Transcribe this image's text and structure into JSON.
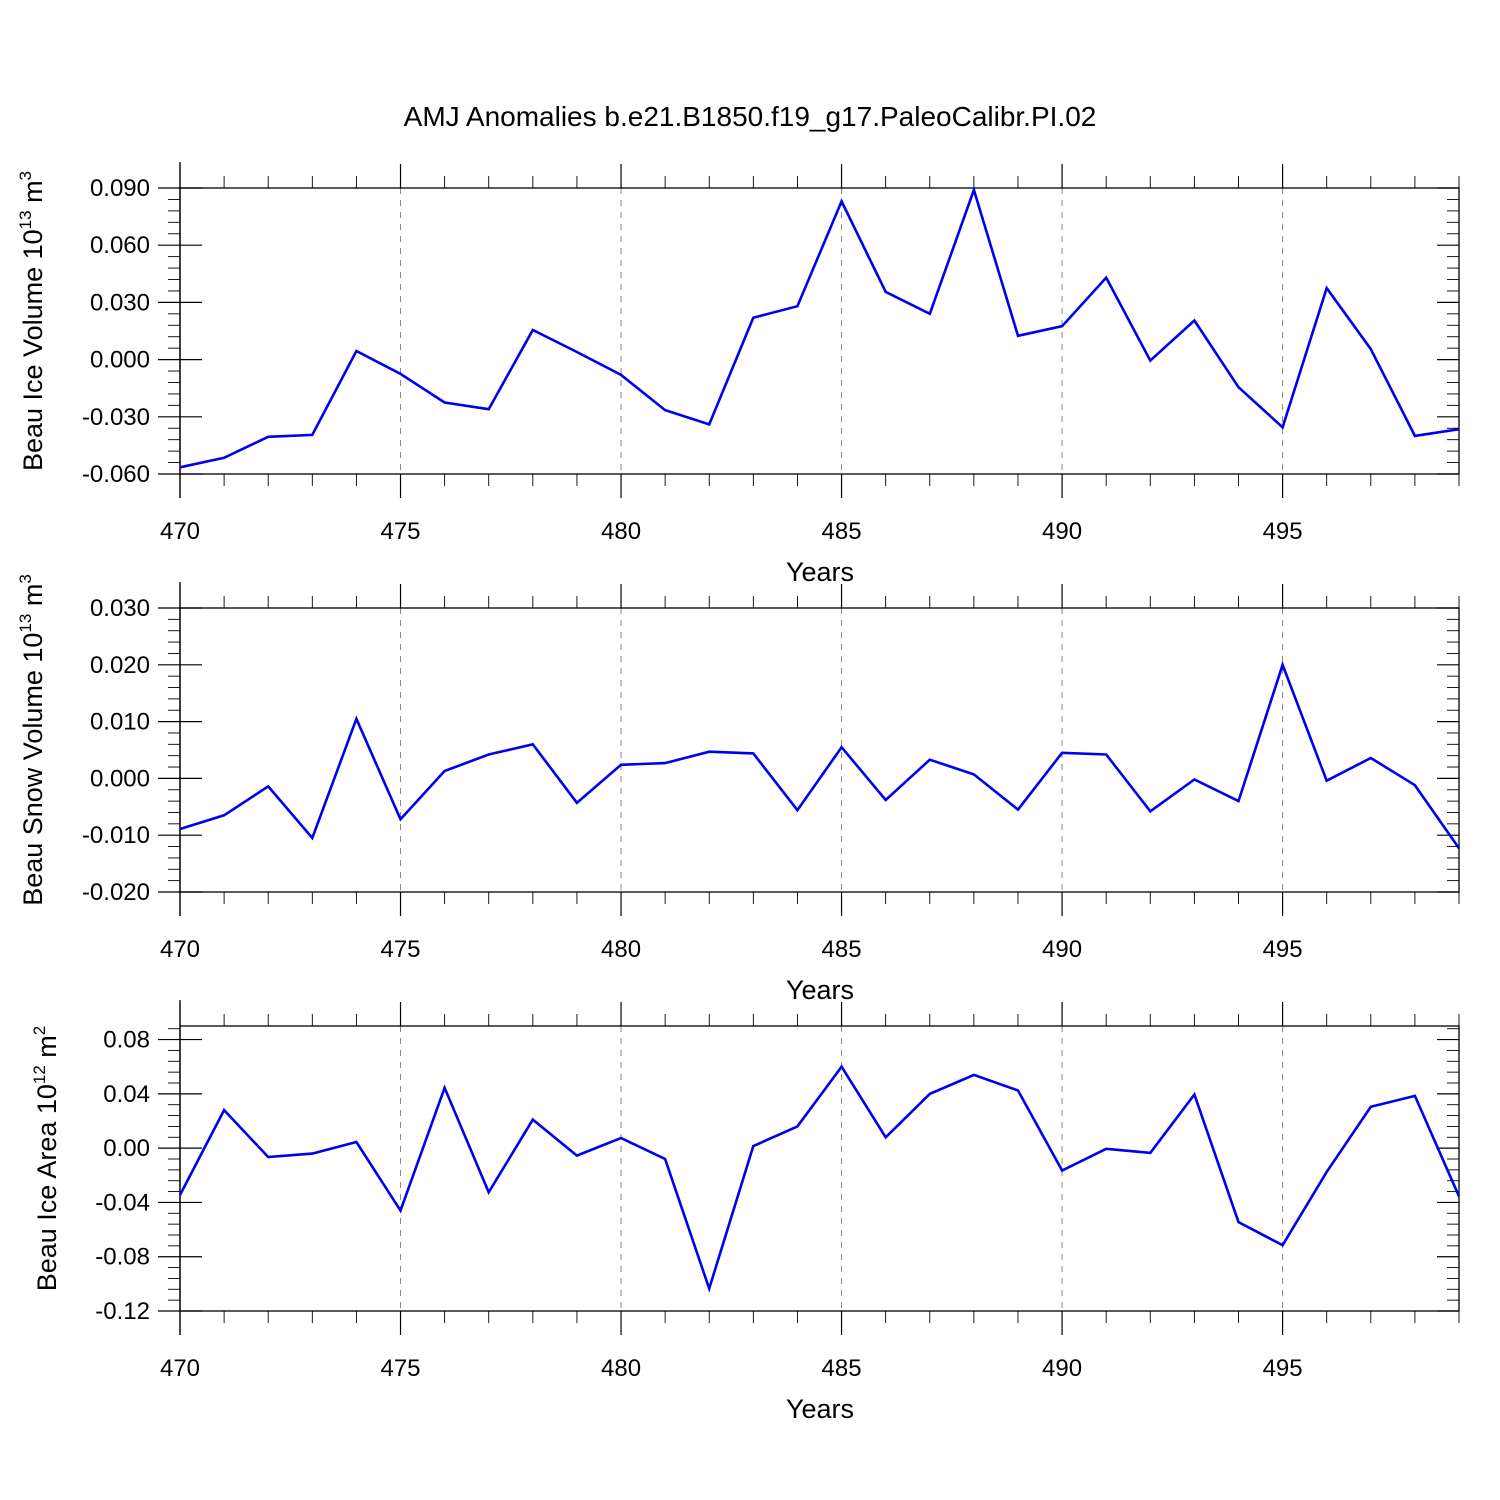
{
  "title": "AMJ Anomalies b.e21.B1850.f19_g17.PaleoCalibr.PI.02",
  "colors": {
    "line": "#0000ee",
    "axis": "#000000",
    "grid": "#888888"
  },
  "chart_data": [
    {
      "type": "line",
      "ylabel": {
        "text": "Beau Ice Volume 10",
        "sup": "13",
        "unit": " m",
        "unit_sup": "3"
      },
      "xlabel": "Years",
      "xlim": [
        470,
        499
      ],
      "ylim": [
        -0.06,
        0.09
      ],
      "xticks": [
        470,
        475,
        480,
        485,
        490,
        495
      ],
      "xtick_labels": [
        "470",
        "475",
        "480",
        "485",
        "490",
        "495"
      ],
      "yticks": [
        -0.06,
        -0.03,
        0,
        0.03,
        0.06,
        0.09
      ],
      "ytick_labels": [
        "-0.060",
        "-0.030",
        "0.000",
        "0.030",
        "0.060",
        "0.090"
      ],
      "grid": "vertical-dashed-at-major-x",
      "x": [
        470,
        471,
        472,
        473,
        474,
        475,
        476,
        477,
        478,
        479,
        480,
        481,
        482,
        483,
        484,
        485,
        486,
        487,
        488,
        489,
        490,
        491,
        492,
        493,
        494,
        495,
        496,
        497,
        498,
        499
      ],
      "values": [
        -0.0565,
        -0.0515,
        -0.0405,
        -0.0395,
        0.0045,
        -0.0075,
        -0.0225,
        -0.026,
        0.0155,
        0.004,
        -0.008,
        -0.0265,
        -0.034,
        0.022,
        0.028,
        0.083,
        0.0355,
        0.024,
        0.089,
        0.0125,
        0.0175,
        0.043,
        -0.0005,
        0.0205,
        -0.0145,
        -0.0355,
        0.0375,
        0.0055,
        -0.04,
        -0.0365
      ]
    },
    {
      "type": "line",
      "ylabel": {
        "text": "Beau Snow Volume 10",
        "sup": "13",
        "unit": " m",
        "unit_sup": "3"
      },
      "xlabel": "Years",
      "xlim": [
        470,
        499
      ],
      "ylim": [
        -0.02,
        0.03
      ],
      "xticks": [
        470,
        475,
        480,
        485,
        490,
        495
      ],
      "xtick_labels": [
        "470",
        "475",
        "480",
        "485",
        "490",
        "495"
      ],
      "yticks": [
        -0.02,
        -0.01,
        0,
        0.01,
        0.02,
        0.03
      ],
      "ytick_labels": [
        "-0.020",
        "-0.010",
        "0.000",
        "0.010",
        "0.020",
        "0.030"
      ],
      "grid": "vertical-dashed-at-major-x",
      "x": [
        470,
        471,
        472,
        473,
        474,
        475,
        476,
        477,
        478,
        479,
        480,
        481,
        482,
        483,
        484,
        485,
        486,
        487,
        488,
        489,
        490,
        491,
        492,
        493,
        494,
        495,
        496,
        497,
        498,
        499
      ],
      "values": [
        -0.0089,
        -0.0065,
        -0.0014,
        -0.0105,
        0.0105,
        -0.0072,
        0.0013,
        0.0042,
        0.006,
        -0.0043,
        0.0024,
        0.0027,
        0.0047,
        0.0044,
        -0.0056,
        0.0055,
        -0.0038,
        0.0033,
        0.0007,
        -0.0055,
        0.0045,
        0.0042,
        -0.0058,
        -0.0002,
        -0.004,
        0.02,
        -0.0004,
        0.0036,
        -0.0012,
        -0.0123
      ]
    },
    {
      "type": "line",
      "ylabel": {
        "text": "Beau Ice Area 10",
        "sup": "12",
        "unit": " m",
        "unit_sup": "2"
      },
      "xlabel": "Years",
      "xlim": [
        470,
        499
      ],
      "ylim": [
        -0.12,
        0.09
      ],
      "xticks": [
        470,
        475,
        480,
        485,
        490,
        495
      ],
      "xtick_labels": [
        "470",
        "475",
        "480",
        "485",
        "490",
        "495"
      ],
      "yticks": [
        -0.12,
        -0.08,
        -0.04,
        0,
        0.04,
        0.08
      ],
      "ytick_labels": [
        "-0.12",
        "-0.08",
        "-0.04",
        "0.00",
        "0.04",
        "0.08"
      ],
      "grid": "vertical-dashed-at-major-x",
      "x": [
        470,
        471,
        472,
        473,
        474,
        475,
        476,
        477,
        478,
        479,
        480,
        481,
        482,
        483,
        484,
        485,
        486,
        487,
        488,
        489,
        490,
        491,
        492,
        493,
        494,
        495,
        496,
        497,
        498,
        499
      ],
      "values": [
        -0.0345,
        0.028,
        -0.0065,
        -0.004,
        0.0045,
        -0.046,
        0.0445,
        -0.0325,
        0.021,
        -0.0055,
        0.0075,
        -0.008,
        -0.1035,
        0.0015,
        0.016,
        0.06,
        0.008,
        0.04,
        0.054,
        0.0425,
        -0.0165,
        -0.0005,
        -0.0035,
        0.0395,
        -0.0545,
        -0.0715,
        -0.0175,
        0.0305,
        0.0385,
        -0.0355
      ]
    }
  ]
}
